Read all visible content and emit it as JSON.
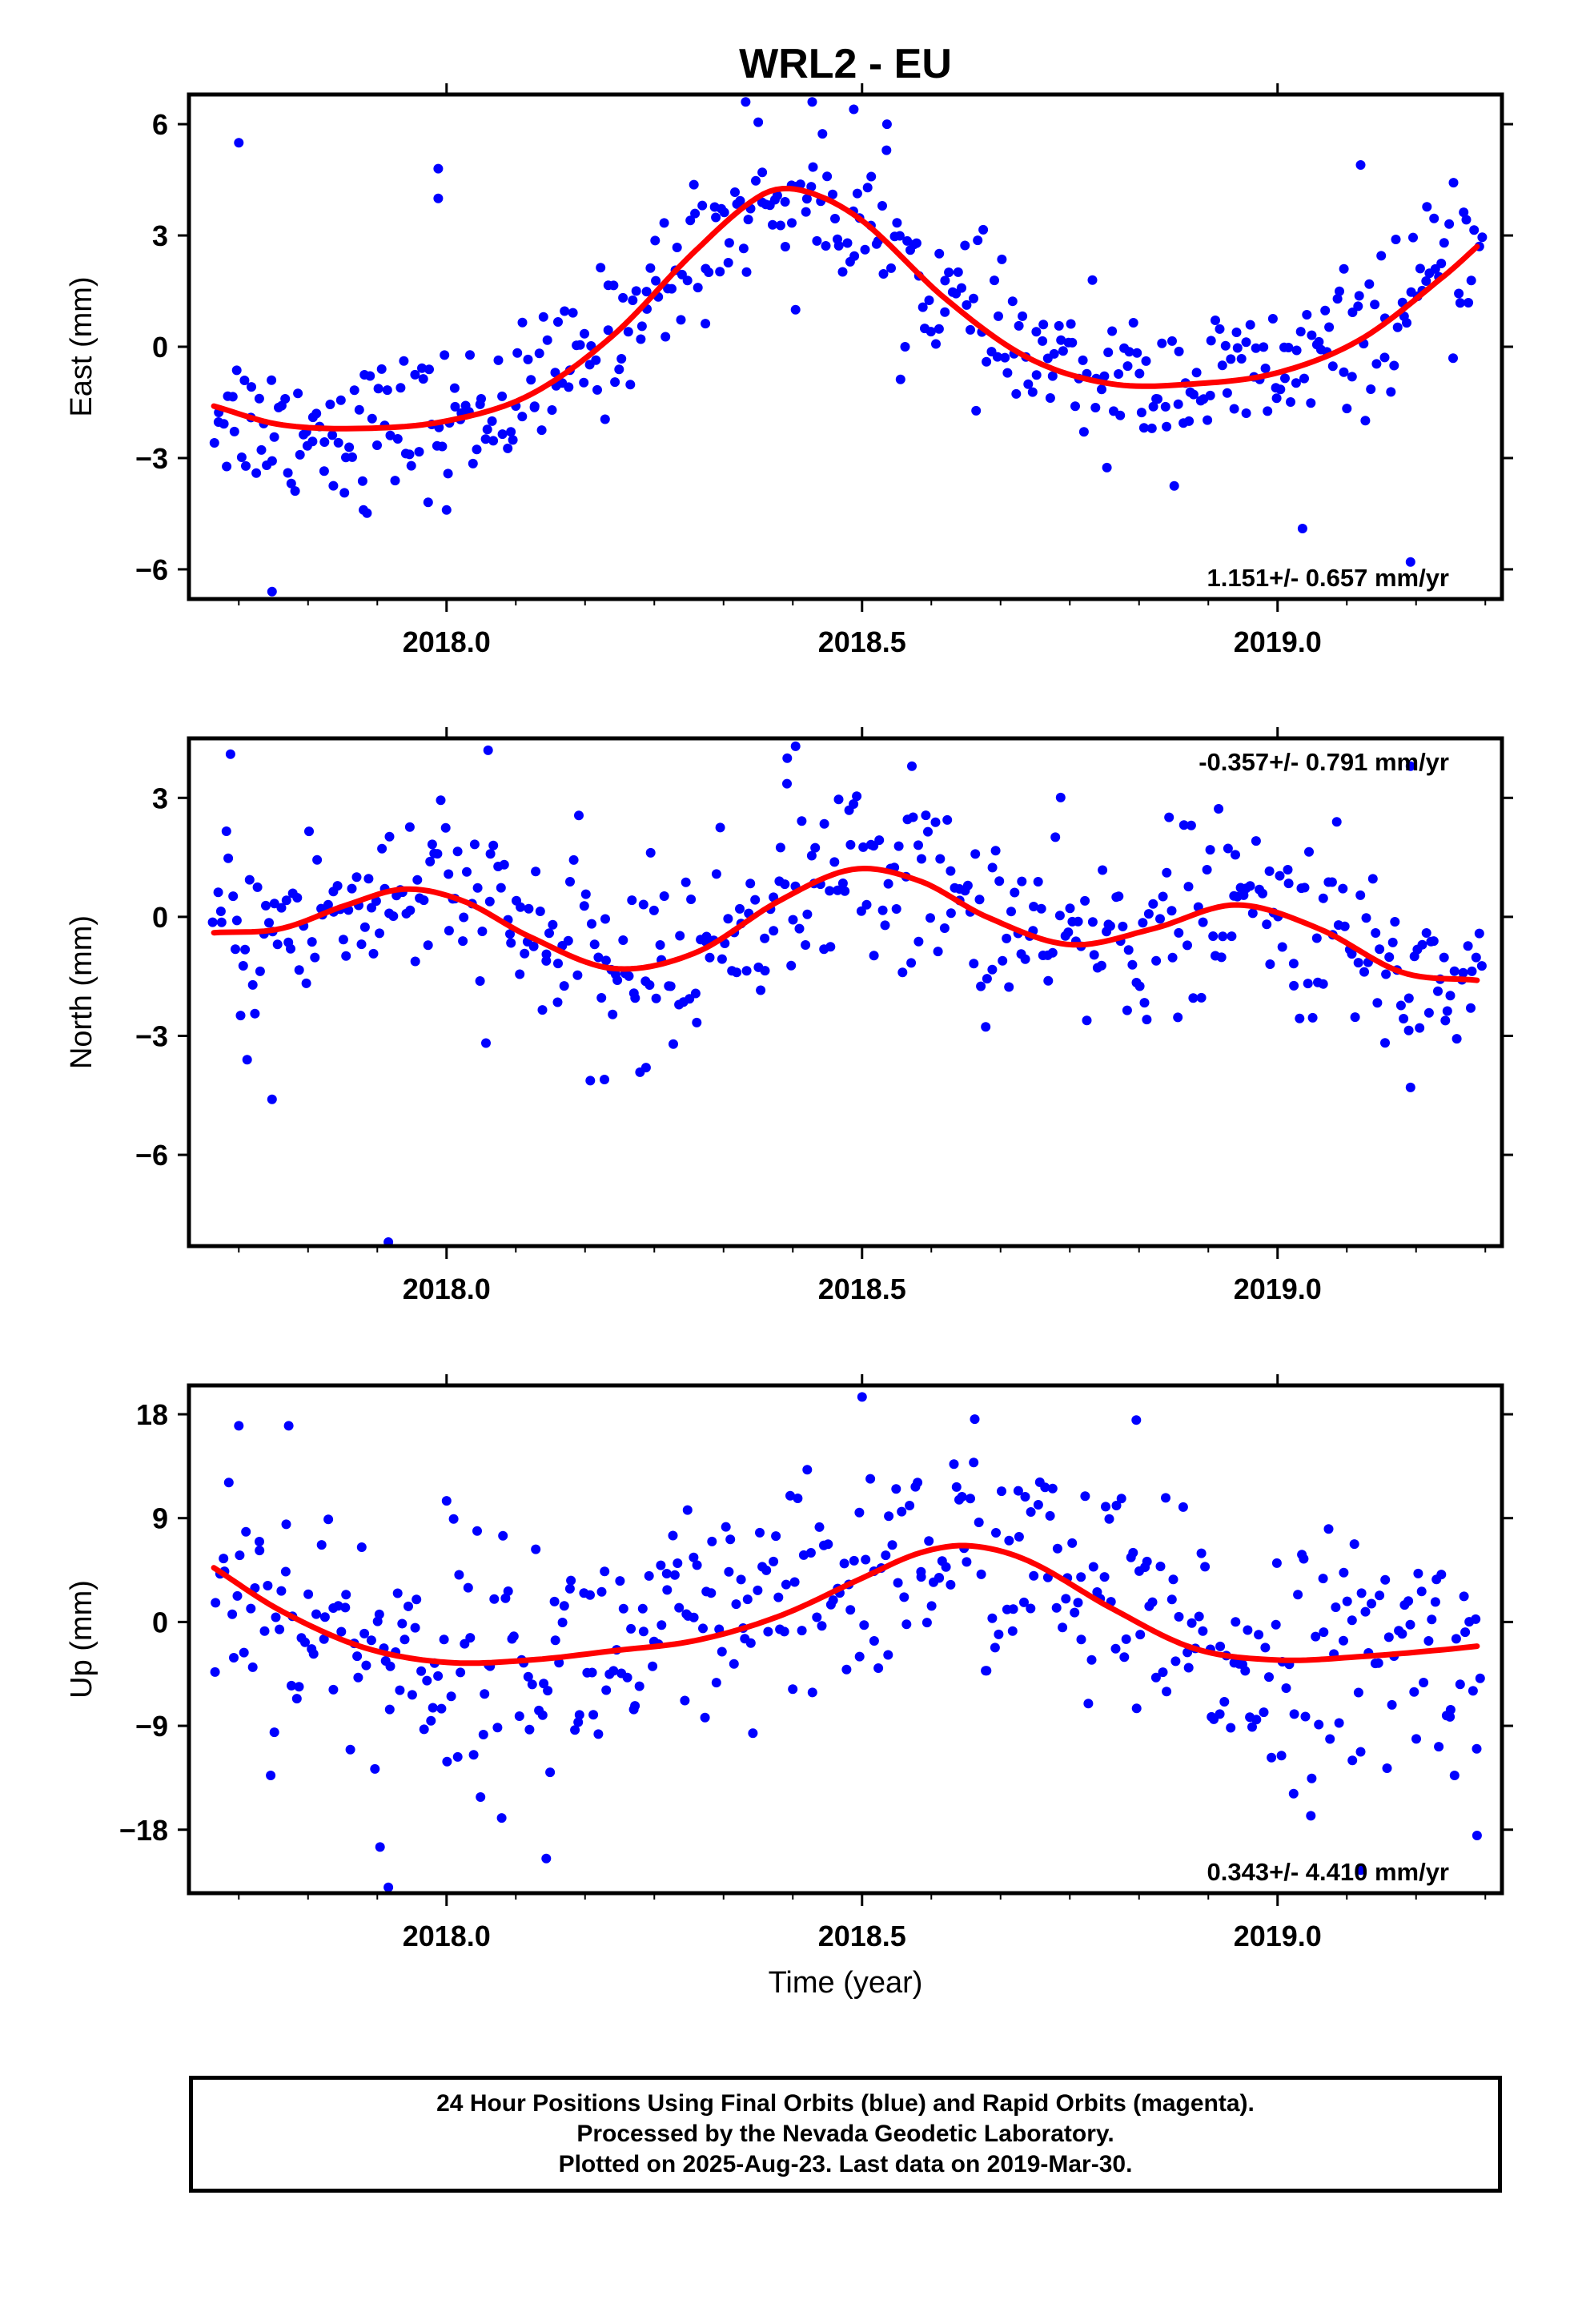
{
  "title": "WRL2 - EU",
  "xlabel": "Time (year)",
  "footer": {
    "line1": "24 Hour Positions Using Final Orbits (blue) and Rapid Orbits (magenta).",
    "line2": "Processed by the Nevada Geodetic Laboratory.",
    "line3": "Plotted on 2025-Aug-23. Last data on 2019-Mar-30."
  },
  "colors": {
    "points": "#0000ff",
    "fit": "#ff0000",
    "frame": "#000000"
  },
  "chart_data": [
    {
      "type": "scatter",
      "ylabel": "East (mm)",
      "xlim": [
        2017.69,
        2019.27
      ],
      "ylim": [
        -6.8,
        6.8
      ],
      "xticks": [
        2018.0,
        2018.5,
        2019.0
      ],
      "xtick_labels": [
        "2018.0",
        "2018.5",
        "2019.0"
      ],
      "yticks": [
        6,
        3,
        0,
        -3,
        -6
      ],
      "ytick_labels": [
        "6",
        "3",
        "0",
        "−3",
        "−6"
      ],
      "rate_label": "1.151+/- 0.657 mm/yr",
      "rate_position": "bottom-right",
      "fit": {
        "x": [
          2017.72,
          2017.8,
          2017.9,
          2018.0,
          2018.1,
          2018.2,
          2018.3,
          2018.38,
          2018.43,
          2018.5,
          2018.6,
          2018.7,
          2018.8,
          2018.9,
          2019.0,
          2019.1,
          2019.2,
          2019.24
        ],
        "y": [
          -1.6,
          -2.1,
          -2.2,
          -2.0,
          -1.3,
          0.3,
          2.6,
          4.1,
          4.2,
          3.4,
          1.3,
          -0.3,
          -1.0,
          -1.0,
          -0.7,
          0.2,
          1.9,
          2.7
        ]
      },
      "points": {
        "mean": [
          -1.6,
          -2.2,
          -2.2,
          -2.0,
          -1.3,
          0.3,
          2.6,
          4.1,
          4.2,
          3.4,
          1.3,
          -0.3,
          -1.0,
          -1.0,
          -0.7,
          0.2,
          1.9,
          2.7
        ],
        "mean_x": [
          2017.72,
          2017.8,
          2017.9,
          2018.0,
          2018.1,
          2018.2,
          2018.3,
          2018.38,
          2018.43,
          2018.5,
          2018.6,
          2018.7,
          2018.8,
          2018.9,
          2019.0,
          2019.1,
          2019.2,
          2019.24
        ],
        "scatter_sd": 0.95,
        "count": 430,
        "outliers": [
          {
            "x": 2017.75,
            "y": 5.5
          },
          {
            "x": 2017.79,
            "y": -6.6
          },
          {
            "x": 2017.99,
            "y": 4.8
          },
          {
            "x": 2017.99,
            "y": 4.0
          },
          {
            "x": 2018.0,
            "y": -4.4
          },
          {
            "x": 2018.36,
            "y": 6.6
          },
          {
            "x": 2018.42,
            "y": 1.0
          },
          {
            "x": 2018.44,
            "y": 6.6
          },
          {
            "x": 2018.49,
            "y": 6.4
          },
          {
            "x": 2018.53,
            "y": 6.0
          },
          {
            "x": 2019.03,
            "y": -4.9
          },
          {
            "x": 2019.16,
            "y": -5.8
          },
          {
            "x": 2019.1,
            "y": 4.9
          },
          {
            "x": 2017.9,
            "y": -4.4
          }
        ]
      }
    },
    {
      "type": "scatter",
      "ylabel": "North (mm)",
      "xlim": [
        2017.69,
        2019.27
      ],
      "ylim": [
        -8.3,
        4.5
      ],
      "xticks": [
        2018.0,
        2018.5,
        2019.0
      ],
      "xtick_labels": [
        "2018.0",
        "2018.5",
        "2019.0"
      ],
      "yticks": [
        3,
        0,
        -3,
        -6
      ],
      "ytick_labels": [
        "3",
        "0",
        "−3",
        "−6"
      ],
      "rate_label": "-0.357+/- 0.791 mm/yr",
      "rate_position": "top-right",
      "fit": {
        "x": [
          2017.72,
          2017.8,
          2017.88,
          2017.95,
          2018.02,
          2018.1,
          2018.2,
          2018.3,
          2018.4,
          2018.49,
          2018.57,
          2018.65,
          2018.75,
          2018.85,
          2018.95,
          2019.05,
          2019.15,
          2019.24
        ],
        "y": [
          -0.4,
          -0.3,
          0.3,
          0.7,
          0.4,
          -0.5,
          -1.3,
          -0.9,
          0.4,
          1.2,
          0.9,
          0.0,
          -0.7,
          -0.3,
          0.3,
          -0.3,
          -1.4,
          -1.6
        ]
      },
      "points": {
        "mean": [
          -0.4,
          -0.3,
          0.3,
          0.7,
          0.4,
          -0.5,
          -1.3,
          -0.9,
          0.4,
          1.2,
          0.9,
          0.0,
          -0.7,
          -0.3,
          0.3,
          -0.3,
          -1.4,
          -1.6
        ],
        "mean_x": [
          2017.72,
          2017.8,
          2017.88,
          2017.95,
          2018.02,
          2018.1,
          2018.2,
          2018.3,
          2018.4,
          2018.49,
          2018.57,
          2018.65,
          2018.75,
          2018.85,
          2018.95,
          2019.05,
          2019.15,
          2019.24
        ],
        "scatter_sd": 1.15,
        "count": 430,
        "outliers": [
          {
            "x": 2017.74,
            "y": 4.1
          },
          {
            "x": 2017.79,
            "y": -4.6
          },
          {
            "x": 2017.93,
            "y": -8.2
          },
          {
            "x": 2018.05,
            "y": 4.2
          },
          {
            "x": 2018.42,
            "y": 4.3
          },
          {
            "x": 2018.41,
            "y": 4.0
          },
          {
            "x": 2018.19,
            "y": -4.1
          },
          {
            "x": 2018.24,
            "y": -3.8
          },
          {
            "x": 2019.16,
            "y": -4.3
          },
          {
            "x": 2019.16,
            "y": 3.8
          },
          {
            "x": 2018.56,
            "y": 3.8
          },
          {
            "x": 2017.76,
            "y": -3.6
          }
        ]
      }
    },
    {
      "type": "scatter",
      "ylabel": "Up (mm)",
      "xlim": [
        2017.69,
        2019.27
      ],
      "ylim": [
        -23.5,
        20.5
      ],
      "xticks": [
        2018.0,
        2018.5,
        2019.0
      ],
      "xtick_labels": [
        "2018.0",
        "2018.5",
        "2019.0"
      ],
      "yticks": [
        18,
        9,
        0,
        -9,
        -18
      ],
      "ytick_labels": [
        "18",
        "9",
        "0",
        "−9",
        "−18"
      ],
      "rate_label": "0.343+/- 4.410 mm/yr",
      "rate_position": "bottom-right",
      "fit": {
        "x": [
          2017.72,
          2017.8,
          2017.9,
          2018.0,
          2018.1,
          2018.2,
          2018.3,
          2018.4,
          2018.5,
          2018.57,
          2018.63,
          2018.7,
          2018.8,
          2018.9,
          2019.0,
          2019.1,
          2019.2,
          2019.24
        ],
        "y": [
          4.7,
          1.0,
          -2.2,
          -3.5,
          -3.3,
          -2.5,
          -1.6,
          0.5,
          3.8,
          6.0,
          6.6,
          5.3,
          1.2,
          -2.3,
          -3.3,
          -3.0,
          -2.4,
          -2.1
        ]
      },
      "points": {
        "mean": [
          4.7,
          1.0,
          -2.2,
          -3.5,
          -3.3,
          -2.5,
          -1.6,
          0.5,
          3.8,
          6.0,
          6.6,
          5.3,
          1.2,
          -2.3,
          -3.3,
          -3.0,
          -2.4,
          -2.1
        ],
        "mean_x": [
          2017.72,
          2017.8,
          2017.9,
          2018.0,
          2018.1,
          2018.2,
          2018.3,
          2018.4,
          2018.5,
          2018.57,
          2018.63,
          2018.7,
          2018.8,
          2018.9,
          2019.0,
          2019.1,
          2019.2,
          2019.24
        ],
        "scatter_sd": 5.2,
        "count": 430,
        "outliers": [
          {
            "x": 2018.5,
            "y": 19.5
          },
          {
            "x": 2017.93,
            "y": -23.0
          },
          {
            "x": 2018.12,
            "y": -20.5
          },
          {
            "x": 2019.1,
            "y": -21.5
          },
          {
            "x": 2019.24,
            "y": -18.5
          },
          {
            "x": 2018.83,
            "y": 17.5
          },
          {
            "x": 2017.75,
            "y": 17.0
          },
          {
            "x": 2017.81,
            "y": 17.0
          },
          {
            "x": 2018.0,
            "y": 10.5
          },
          {
            "x": 2018.29,
            "y": 9.7
          },
          {
            "x": 2017.92,
            "y": -19.5
          },
          {
            "x": 2019.09,
            "y": -12.0
          }
        ]
      }
    }
  ]
}
